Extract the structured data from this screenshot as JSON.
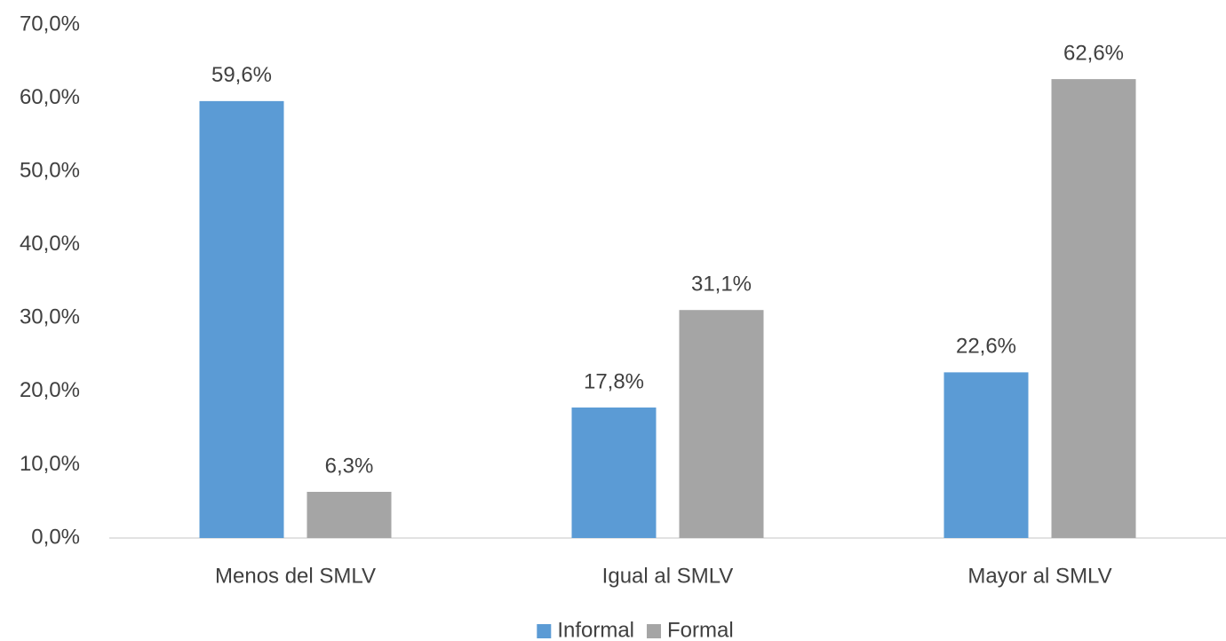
{
  "chart_data": {
    "type": "bar",
    "categories": [
      "Menos del SMLV",
      "Igual al SMLV",
      "Mayor al SMLV"
    ],
    "series": [
      {
        "name": "Informal",
        "color": "#5b9bd5",
        "values": [
          59.6,
          17.8,
          22.6
        ],
        "value_labels": [
          "59,6%",
          "17,8%",
          "22,6%"
        ]
      },
      {
        "name": "Formal",
        "color": "#a5a5a5",
        "values": [
          6.3,
          31.1,
          62.6
        ],
        "value_labels": [
          "6,3%",
          "31,1%",
          "62,6%"
        ]
      }
    ],
    "ylim": [
      0,
      70
    ],
    "yticks": [
      {
        "value": 0,
        "label": "0,0%"
      },
      {
        "value": 10,
        "label": "10,0%"
      },
      {
        "value": 20,
        "label": "20,0%"
      },
      {
        "value": 30,
        "label": "30,0%"
      },
      {
        "value": 40,
        "label": "40,0%"
      },
      {
        "value": 50,
        "label": "50,0%"
      },
      {
        "value": 60,
        "label": "60,0%"
      },
      {
        "value": 70,
        "label": "70,0%"
      }
    ],
    "grid": false,
    "legend": "bottom"
  }
}
